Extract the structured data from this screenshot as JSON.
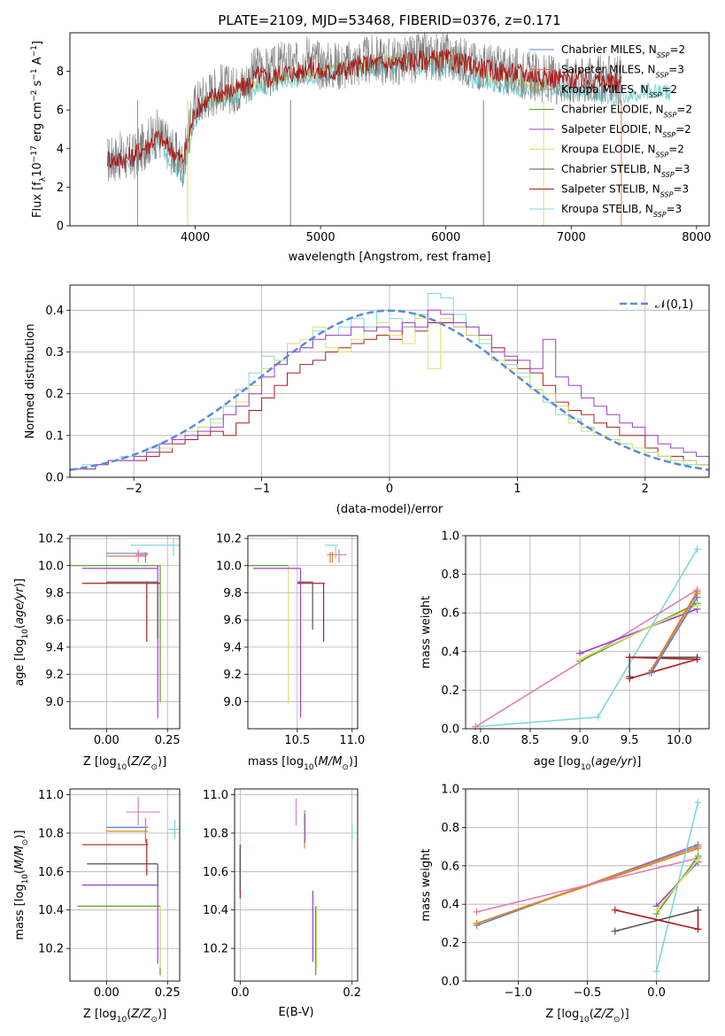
{
  "figure_title": "PLATE=2109, MJD=53468, FIBERID=0376, z=0.171",
  "colors": {
    "Chabrier MILES": "#5b7fd6",
    "Salpeter MILES": "#e8734a",
    "Kroupa MILES": "#d98a1f",
    "Chabrier ELODIE": "#5aa02c",
    "Salpeter ELODIE": "#9b3fd1",
    "Kroupa ELODIE": "#d8e06a",
    "Chabrier STELIB": "#555555",
    "Salpeter STELIB": "#aa1d1d",
    "Kroupa STELIB": "#7dd8d8",
    "data": "#7f7f7f",
    "gaussian": "#5b8bd9",
    "pink": "#e07fb6",
    "grid": "#b0b0b0"
  },
  "chart_data": [
    {
      "id": "spectrum",
      "type": "line",
      "title": "PLATE=2109, MJD=53468, FIBERID=0376, z=0.171",
      "xlabel": "wavelength [Angstrom, rest frame]",
      "ylabel": "Flux [f_λ 10^-17 erg cm^-2 s^-1 A^-1]",
      "xlim": [
        3000,
        8100
      ],
      "ylim": [
        0,
        10
      ],
      "xticks": [
        4000,
        5000,
        6000,
        7000,
        8000
      ],
      "yticks": [
        0,
        2,
        4,
        6,
        8
      ],
      "grid": false,
      "legend_position": "top-right",
      "legend": [
        "Chabrier MILES, N_SSP=2",
        "Salpeter MILES, N_SSP=3",
        "Kroupa MILES, N_SSP=2",
        "Chabrier ELODIE, N_SSP=2",
        "Salpeter ELODIE, N_SSP=2",
        "Kroupa ELODIE, N_SSP=2",
        "Chabrier STELIB, N_SSP=3",
        "Salpeter STELIB, N_SSP=3",
        "Kroupa STELIB, N_SSP=3"
      ],
      "series": [
        {
          "name": "data",
          "x": [
            3300,
            3400,
            3500,
            3600,
            3700,
            3800,
            3900,
            4000,
            4100,
            4200,
            4300,
            4400,
            4500,
            4600,
            4700,
            4800,
            4900,
            5000,
            5200,
            5400,
            5600,
            5800,
            6000,
            6200,
            6400,
            6600,
            6800,
            7000,
            7200,
            7400
          ],
          "y": [
            3.4,
            3.6,
            3.5,
            4.2,
            4.8,
            4.0,
            3.2,
            6.3,
            6.8,
            7.2,
            7.0,
            7.4,
            8.2,
            7.9,
            8.4,
            8.2,
            8.8,
            8.3,
            8.3,
            8.6,
            8.5,
            8.7,
            8.8,
            8.4,
            8.1,
            7.9,
            7.6,
            7.5,
            7.6,
            7.5
          ]
        },
        {
          "name": "Salpeter STELIB, N_SSP=3",
          "x": [
            3300,
            3400,
            3500,
            3600,
            3700,
            3800,
            3900,
            4000,
            4100,
            4200,
            4300,
            4400,
            4500,
            4600,
            4700,
            4800,
            4900,
            5000,
            5200,
            5400,
            5600,
            5800,
            6000,
            6200,
            6400,
            6600,
            6800,
            7000,
            7200,
            7400
          ],
          "y": [
            3.5,
            3.4,
            3.6,
            4.1,
            4.6,
            4.0,
            3.4,
            6.0,
            6.5,
            6.9,
            7.0,
            7.2,
            7.8,
            7.6,
            8.0,
            7.9,
            8.3,
            7.9,
            8.1,
            8.4,
            8.4,
            8.6,
            8.6,
            8.3,
            8.0,
            7.9,
            7.7,
            7.6,
            7.5,
            7.4
          ]
        },
        {
          "name": "Kroupa STELIB, N_SSP=3",
          "x": [
            3300,
            3400,
            3500,
            3600,
            3700,
            3800,
            3900,
            4000,
            4200,
            4400,
            4600,
            4800,
            5000,
            5200,
            5400,
            5600,
            5800,
            6000,
            6200,
            6400,
            6600,
            6800,
            7000,
            7200,
            7400,
            7600,
            7800
          ],
          "y": [
            3.6,
            3.5,
            3.3,
            3.8,
            4.3,
            3.5,
            2.2,
            5.8,
            6.6,
            6.8,
            7.3,
            7.6,
            7.8,
            8.0,
            8.1,
            8.2,
            8.3,
            8.2,
            7.6,
            7.3,
            7.0,
            7.1,
            6.9,
            6.8,
            6.7,
            7.0,
            6.9
          ]
        },
        {
          "name": "Kroupa ELODIE, N_SSP=2",
          "x": [
            3900,
            4000,
            4200,
            4400,
            4600,
            4800,
            5000,
            5200,
            5400,
            5600,
            5800,
            6000,
            6200,
            6400,
            6600,
            6800
          ],
          "y": [
            3.0,
            6.0,
            6.7,
            7.0,
            7.5,
            7.8,
            8.0,
            8.2,
            8.4,
            8.6,
            8.7,
            8.7,
            8.2,
            7.6,
            7.4,
            7.2
          ]
        }
      ]
    },
    {
      "id": "residuals",
      "type": "line",
      "xlabel": "(data-model)/error",
      "ylabel": "Normed distribution",
      "xlim": [
        -2.5,
        2.5
      ],
      "ylim": [
        0,
        0.46
      ],
      "xticks": [
        -2,
        -1,
        0,
        1,
        2
      ],
      "yticks": [
        0.0,
        0.1,
        0.2,
        0.3,
        0.4
      ],
      "grid": true,
      "legend_position": "top-right",
      "gaussian_label": "𝒩(0,1)",
      "bin_edges": [
        -2.5,
        -2.4,
        -2.3,
        -2.2,
        -2.1,
        -2.0,
        -1.9,
        -1.8,
        -1.7,
        -1.6,
        -1.5,
        -1.4,
        -1.3,
        -1.2,
        -1.1,
        -1.0,
        -0.9,
        -0.8,
        -0.7,
        -0.6,
        -0.5,
        -0.4,
        -0.3,
        -0.2,
        -0.1,
        0.0,
        0.1,
        0.2,
        0.3,
        0.4,
        0.5,
        0.6,
        0.7,
        0.8,
        0.9,
        1.0,
        1.1,
        1.2,
        1.3,
        1.4,
        1.5,
        1.6,
        1.7,
        1.8,
        1.9,
        2.0,
        2.1,
        2.2,
        2.3,
        2.4,
        2.5
      ],
      "series": [
        {
          "name": "Salpeter STELIB, N_SSP=3",
          "values": [
            0.02,
            0.02,
            0.03,
            0.04,
            0.04,
            0.04,
            0.05,
            0.06,
            0.08,
            0.09,
            0.1,
            0.11,
            0.1,
            0.13,
            0.16,
            0.19,
            0.22,
            0.25,
            0.27,
            0.28,
            0.3,
            0.31,
            0.32,
            0.33,
            0.34,
            0.33,
            0.36,
            0.35,
            0.37,
            0.37,
            0.36,
            0.34,
            0.34,
            0.31,
            0.28,
            0.26,
            0.25,
            0.22,
            0.18,
            0.16,
            0.15,
            0.13,
            0.12,
            0.1,
            0.1,
            0.07,
            0.05,
            0.05,
            0.04,
            0.03
          ]
        },
        {
          "name": "Kroupa STELIB, N_SSP=3",
          "values": [
            0.02,
            0.03,
            0.03,
            0.04,
            0.05,
            0.05,
            0.07,
            0.08,
            0.09,
            0.11,
            0.12,
            0.14,
            0.17,
            0.21,
            0.25,
            0.29,
            0.28,
            0.3,
            0.31,
            0.35,
            0.34,
            0.36,
            0.38,
            0.36,
            0.4,
            0.38,
            0.36,
            0.39,
            0.44,
            0.43,
            0.39,
            0.36,
            0.32,
            0.3,
            0.27,
            0.25,
            0.21,
            0.18,
            0.15,
            0.14,
            0.12,
            0.1,
            0.09,
            0.08,
            0.07,
            0.06,
            0.05,
            0.04,
            0.03,
            0.03
          ]
        },
        {
          "name": "Kroupa ELODIE, N_SSP=2",
          "values": [
            0.02,
            0.02,
            0.03,
            0.04,
            0.04,
            0.05,
            0.06,
            0.07,
            0.09,
            0.11,
            0.12,
            0.13,
            0.15,
            0.18,
            0.22,
            0.26,
            0.28,
            0.32,
            0.33,
            0.36,
            0.31,
            0.3,
            0.33,
            0.35,
            0.37,
            0.34,
            0.32,
            0.38,
            0.26,
            0.38,
            0.36,
            0.34,
            0.33,
            0.28,
            0.26,
            0.24,
            0.21,
            0.2,
            0.17,
            0.13,
            0.11,
            0.1,
            0.09,
            0.08,
            0.07,
            0.06,
            0.05,
            0.04,
            0.04,
            0.03
          ]
        },
        {
          "name": "Salpeter ELODIE, N_SSP=2",
          "values": [
            0.02,
            0.02,
            0.03,
            0.04,
            0.04,
            0.05,
            0.06,
            0.08,
            0.09,
            0.1,
            0.11,
            0.12,
            0.15,
            0.17,
            0.2,
            0.24,
            0.27,
            0.3,
            0.31,
            0.33,
            0.34,
            0.34,
            0.36,
            0.35,
            0.36,
            0.35,
            0.37,
            0.36,
            0.4,
            0.39,
            0.37,
            0.36,
            0.34,
            0.3,
            0.29,
            0.28,
            0.26,
            0.33,
            0.24,
            0.22,
            0.19,
            0.17,
            0.15,
            0.13,
            0.12,
            0.1,
            0.08,
            0.07,
            0.06,
            0.05
          ]
        }
      ],
      "gaussian": {
        "mean": 0,
        "std": 1
      }
    },
    {
      "id": "age-vs-Z",
      "type": "scatter",
      "xlabel": "Z [log10(Z/Z⊙)]",
      "ylabel": "age  [log10(age/yr)]",
      "xlim": [
        -0.15,
        0.3
      ],
      "ylim": [
        8.8,
        10.22
      ],
      "xticks": [
        0.0,
        0.25
      ],
      "yticks": [
        9.0,
        9.2,
        9.4,
        9.6,
        9.8,
        10.0,
        10.2
      ],
      "grid": true
    },
    {
      "id": "age-vs-mass",
      "type": "scatter",
      "xlabel": "mass [log10(M/M⊙)]",
      "xlim": [
        10.05,
        11.05
      ],
      "ylim": [
        8.8,
        10.22
      ],
      "xticks": [
        10.5,
        11.0
      ],
      "yticks": [
        9.0,
        9.2,
        9.4,
        9.6,
        9.8,
        10.0,
        10.2
      ],
      "grid": true
    },
    {
      "id": "weight-vs-age",
      "type": "line",
      "xlabel": "age  [log10(age/yr)]",
      "ylabel": "mass weight",
      "xlim": [
        7.85,
        10.3
      ],
      "ylim": [
        0,
        1.0
      ],
      "xticks": [
        8.0,
        8.5,
        9.0,
        9.5,
        10.0
      ],
      "yticks": [
        0.0,
        0.2,
        0.4,
        0.6,
        0.8,
        1.0
      ],
      "grid": true
    },
    {
      "id": "mass-vs-Z",
      "type": "scatter",
      "xlabel": "Z [log10(Z/Z⊙)]",
      "ylabel": "mass [log10(M/M⊙)]",
      "xlim": [
        -0.15,
        0.3
      ],
      "ylim": [
        10.03,
        11.03
      ],
      "xticks": [
        0.0,
        0.25
      ],
      "yticks": [
        10.2,
        10.4,
        10.6,
        10.8,
        11.0
      ],
      "grid": true
    },
    {
      "id": "mass-vs-EBV",
      "type": "scatter",
      "xlabel": "E(B-V)",
      "xlim": [
        -0.01,
        0.21
      ],
      "ylim": [
        10.03,
        11.03
      ],
      "xticks": [
        0.0,
        0.2
      ],
      "yticks": [
        10.2,
        10.4,
        10.6,
        10.8,
        11.0
      ],
      "grid": true
    },
    {
      "id": "weight-vs-Z",
      "type": "line",
      "xlabel": "Z [log10(Z/Z⊙)]",
      "ylabel": "mass weight",
      "xlim": [
        -1.38,
        0.38
      ],
      "ylim": [
        0,
        1.0
      ],
      "xticks": [
        -1.0,
        -0.5,
        0.0
      ],
      "yticks": [
        0.0,
        0.2,
        0.4,
        0.6,
        0.8,
        1.0
      ],
      "grid": true
    }
  ],
  "tick_labels": {
    "spectrum_x": [
      "4000",
      "5000",
      "6000",
      "7000",
      "8000"
    ],
    "spectrum_y": [
      "0",
      "2",
      "4",
      "6",
      "8"
    ],
    "resid_x": [
      "−2",
      "−1",
      "0",
      "1",
      "2"
    ],
    "resid_y": [
      "0.0",
      "0.1",
      "0.2",
      "0.3",
      "0.4"
    ],
    "age_y": [
      "9.0",
      "9.2",
      "9.4",
      "9.6",
      "9.8",
      "10.0",
      "10.2"
    ],
    "z_x": [
      "0.00",
      "0.25"
    ],
    "mass_x": [
      "10.5",
      "11.0"
    ],
    "w_y": [
      "0.0",
      "0.2",
      "0.4",
      "0.6",
      "0.8",
      "1.0"
    ],
    "w_age_x": [
      "8.0",
      "8.5",
      "9.0",
      "9.5",
      "10.0"
    ],
    "mass_y": [
      "10.2",
      "10.4",
      "10.6",
      "10.8",
      "11.0"
    ],
    "ebv_x": [
      "0.0",
      "0.2"
    ],
    "w_z_x": [
      "−1.0",
      "−0.5",
      "0.0"
    ]
  }
}
